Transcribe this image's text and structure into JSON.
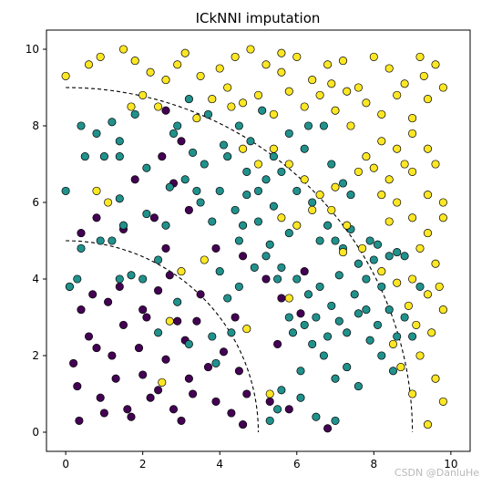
{
  "chart_data": {
    "type": "scatter",
    "title": "ICkNNI imputation",
    "xlabel": "",
    "ylabel": "",
    "xlim": [
      -0.5,
      10.5
    ],
    "ylim": [
      -0.5,
      10.5
    ],
    "x_ticks": [
      0,
      2,
      4,
      6,
      8,
      10
    ],
    "y_ticks": [
      0,
      2,
      4,
      6,
      8,
      10
    ],
    "grid": false,
    "legend": "none",
    "colors": {
      "inner": "#440154",
      "middle": "#21918c",
      "outer": "#fde725"
    },
    "marker_edge": "#000000",
    "boundaries": [
      {
        "shape": "quarter-circle",
        "center": [
          0,
          0
        ],
        "radius": 5,
        "style": "dashed"
      },
      {
        "shape": "quarter-circle",
        "center": [
          0,
          0
        ],
        "radius": 9,
        "style": "dashed"
      }
    ],
    "series": [
      {
        "class": "inner",
        "points": [
          [
            0.35,
            0.3
          ],
          [
            0.2,
            1.8
          ],
          [
            0.4,
            3.2
          ],
          [
            0.1,
            3.8
          ],
          [
            0.8,
            2.2
          ],
          [
            0.9,
            0.9
          ],
          [
            1.3,
            1.4
          ],
          [
            1.7,
            0.4
          ],
          [
            1.9,
            2.2
          ],
          [
            2.1,
            3.0
          ],
          [
            2.4,
            1.1
          ],
          [
            2.8,
            0.6
          ],
          [
            3.1,
            2.4
          ],
          [
            3.3,
            1.0
          ],
          [
            3.5,
            3.6
          ],
          [
            3.9,
            0.8
          ],
          [
            4.1,
            2.1
          ],
          [
            0.6,
            2.5
          ],
          [
            1.1,
            3.4
          ],
          [
            1.5,
            2.8
          ],
          [
            2.6,
            1.9
          ],
          [
            3.0,
            0.3
          ],
          [
            3.7,
            1.7
          ],
          [
            4.3,
            0.5
          ],
          [
            0.3,
            1.2
          ],
          [
            1.0,
            0.5
          ],
          [
            2.0,
            1.5
          ],
          [
            2.9,
            2.9
          ],
          [
            1.6,
            0.6
          ],
          [
            0.7,
            3.6
          ],
          [
            4.5,
            1.6
          ],
          [
            3.4,
            2.9
          ],
          [
            2.2,
            0.9
          ],
          [
            1.2,
            2.0
          ],
          [
            4.7,
            1.0
          ],
          [
            4.6,
            0.2
          ],
          [
            5.3,
            0.8
          ],
          [
            6.8,
            0.1
          ],
          [
            5.6,
            3.5
          ],
          [
            6.1,
            3.1
          ],
          [
            5.5,
            2.3
          ],
          [
            5.2,
            4.0
          ],
          [
            6.2,
            4.2
          ],
          [
            5.8,
            0.6
          ],
          [
            4.6,
            4.6
          ],
          [
            2.6,
            4.8
          ],
          [
            1.4,
            3.8
          ],
          [
            2.0,
            3.2
          ],
          [
            0.4,
            5.2
          ],
          [
            0.8,
            5.6
          ],
          [
            1.8,
            6.6
          ],
          [
            2.8,
            6.5
          ],
          [
            3.0,
            7.6
          ],
          [
            2.6,
            8.4
          ],
          [
            2.5,
            7.2
          ],
          [
            1.5,
            5.3
          ],
          [
            2.3,
            5.6
          ],
          [
            3.2,
            5.8
          ],
          [
            3.9,
            4.8
          ],
          [
            2.7,
            4.1
          ],
          [
            4.4,
            3.0
          ],
          [
            3.2,
            1.4
          ],
          [
            2.4,
            3.7
          ]
        ]
      },
      {
        "class": "middle",
        "points": [
          [
            0.0,
            6.3
          ],
          [
            0.4,
            8.0
          ],
          [
            0.5,
            7.2
          ],
          [
            0.8,
            7.8
          ],
          [
            1.2,
            8.1
          ],
          [
            1.4,
            7.6
          ],
          [
            1.4,
            6.1
          ],
          [
            1.5,
            5.4
          ],
          [
            1.4,
            4.0
          ],
          [
            1.8,
            8.3
          ],
          [
            2.1,
            5.7
          ],
          [
            2.4,
            4.5
          ],
          [
            2.6,
            5.4
          ],
          [
            2.7,
            6.4
          ],
          [
            3.1,
            6.6
          ],
          [
            3.3,
            7.3
          ],
          [
            3.5,
            6.0
          ],
          [
            3.8,
            5.5
          ],
          [
            4.0,
            6.3
          ],
          [
            4.2,
            7.2
          ],
          [
            4.4,
            5.8
          ],
          [
            4.5,
            5.0
          ],
          [
            4.7,
            6.2
          ],
          [
            4.8,
            7.6
          ],
          [
            5.1,
            8.4
          ],
          [
            5.2,
            6.6
          ],
          [
            5.4,
            5.9
          ],
          [
            5.6,
            6.8
          ],
          [
            5.8,
            5.2
          ],
          [
            6.0,
            6.3
          ],
          [
            6.2,
            7.4
          ],
          [
            6.4,
            6.0
          ],
          [
            6.6,
            5.0
          ],
          [
            6.8,
            5.4
          ],
          [
            7.0,
            5.0
          ],
          [
            7.2,
            4.8
          ],
          [
            7.4,
            6.2
          ],
          [
            7.6,
            4.4
          ],
          [
            7.8,
            4.0
          ],
          [
            8.0,
            4.5
          ],
          [
            8.2,
            3.8
          ],
          [
            8.4,
            3.2
          ],
          [
            8.6,
            4.7
          ],
          [
            8.6,
            2.5
          ],
          [
            8.8,
            3.0
          ],
          [
            9.0,
            2.5
          ],
          [
            4.0,
            4.2
          ],
          [
            4.2,
            3.5
          ],
          [
            4.5,
            3.8
          ],
          [
            4.9,
            4.3
          ],
          [
            5.2,
            4.6
          ],
          [
            5.6,
            4.3
          ],
          [
            6.0,
            4.0
          ],
          [
            6.3,
            3.6
          ],
          [
            6.6,
            3.8
          ],
          [
            6.9,
            3.3
          ],
          [
            7.1,
            2.9
          ],
          [
            7.3,
            2.6
          ],
          [
            7.6,
            3.1
          ],
          [
            7.9,
            2.4
          ],
          [
            8.2,
            2.0
          ],
          [
            8.5,
            1.6
          ],
          [
            7.3,
            1.7
          ],
          [
            7.6,
            1.2
          ],
          [
            7.0,
            1.4
          ],
          [
            6.7,
            2.0
          ],
          [
            6.4,
            2.3
          ],
          [
            6.1,
            1.6
          ],
          [
            5.9,
            2.6
          ],
          [
            5.6,
            1.1
          ],
          [
            5.3,
            0.3
          ],
          [
            5.5,
            0.6
          ],
          [
            6.1,
            0.9
          ],
          [
            6.5,
            0.4
          ],
          [
            7.0,
            0.3
          ],
          [
            3.9,
            1.8
          ],
          [
            4.3,
            2.6
          ],
          [
            3.8,
            2.5
          ],
          [
            3.2,
            2.3
          ],
          [
            2.9,
            3.4
          ],
          [
            2.4,
            2.6
          ],
          [
            2.0,
            4.0
          ],
          [
            1.7,
            4.1
          ],
          [
            1.2,
            5.0
          ],
          [
            0.4,
            4.8
          ],
          [
            1.0,
            7.2
          ],
          [
            2.9,
            8.0
          ],
          [
            3.2,
            8.7
          ],
          [
            3.7,
            8.3
          ],
          [
            4.1,
            7.5
          ],
          [
            4.5,
            8.0
          ],
          [
            4.7,
            6.8
          ],
          [
            5.0,
            6.3
          ],
          [
            5.4,
            7.2
          ],
          [
            5.8,
            7.8
          ],
          [
            6.3,
            8.0
          ],
          [
            6.7,
            8.0
          ],
          [
            6.9,
            7.0
          ],
          [
            7.2,
            6.5
          ],
          [
            7.4,
            5.3
          ],
          [
            7.9,
            5.0
          ],
          [
            8.1,
            4.9
          ],
          [
            8.4,
            4.6
          ],
          [
            8.8,
            4.6
          ],
          [
            9.2,
            3.8
          ],
          [
            3.6,
            7.0
          ],
          [
            3.4,
            6.3
          ],
          [
            4.6,
            5.4
          ],
          [
            5.0,
            5.5
          ],
          [
            5.3,
            4.9
          ],
          [
            5.5,
            4.0
          ],
          [
            5.8,
            3.0
          ],
          [
            6.2,
            2.8
          ],
          [
            6.5,
            3.0
          ],
          [
            6.8,
            2.5
          ],
          [
            7.1,
            4.1
          ],
          [
            7.5,
            3.6
          ],
          [
            7.8,
            3.2
          ],
          [
            8.1,
            2.8
          ],
          [
            2.1,
            6.9
          ],
          [
            2.8,
            7.8
          ],
          [
            1.4,
            7.2
          ],
          [
            0.9,
            5.0
          ],
          [
            0.3,
            4.0
          ],
          [
            0.1,
            3.8
          ]
        ]
      },
      {
        "class": "outer",
        "points": [
          [
            0.0,
            9.3
          ],
          [
            0.6,
            9.6
          ],
          [
            0.9,
            9.8
          ],
          [
            1.5,
            10.0
          ],
          [
            1.8,
            9.7
          ],
          [
            2.2,
            9.4
          ],
          [
            2.6,
            9.2
          ],
          [
            2.9,
            9.6
          ],
          [
            3.1,
            9.9
          ],
          [
            3.5,
            9.3
          ],
          [
            4.0,
            9.5
          ],
          [
            4.4,
            9.8
          ],
          [
            4.8,
            10.0
          ],
          [
            5.2,
            9.6
          ],
          [
            5.6,
            9.4
          ],
          [
            6.0,
            9.8
          ],
          [
            6.4,
            9.2
          ],
          [
            6.8,
            9.6
          ],
          [
            7.2,
            9.7
          ],
          [
            7.6,
            9.0
          ],
          [
            8.0,
            9.8
          ],
          [
            8.4,
            9.5
          ],
          [
            8.8,
            9.1
          ],
          [
            9.2,
            9.8
          ],
          [
            9.6,
            9.6
          ],
          [
            9.8,
            9.0
          ],
          [
            9.4,
            8.7
          ],
          [
            9.0,
            8.2
          ],
          [
            8.6,
            8.8
          ],
          [
            8.2,
            8.3
          ],
          [
            7.8,
            8.6
          ],
          [
            7.4,
            8.0
          ],
          [
            7.0,
            8.4
          ],
          [
            6.6,
            8.8
          ],
          [
            6.2,
            8.5
          ],
          [
            5.8,
            8.9
          ],
          [
            5.4,
            8.3
          ],
          [
            5.0,
            8.8
          ],
          [
            4.6,
            8.6
          ],
          [
            4.2,
            9.0
          ],
          [
            3.8,
            8.7
          ],
          [
            3.4,
            8.2
          ],
          [
            2.4,
            8.5
          ],
          [
            2.0,
            8.8
          ],
          [
            1.7,
            8.5
          ],
          [
            0.8,
            6.3
          ],
          [
            1.1,
            6.0
          ],
          [
            9.0,
            7.8
          ],
          [
            9.4,
            7.4
          ],
          [
            8.8,
            7.0
          ],
          [
            8.4,
            6.6
          ],
          [
            8.0,
            6.9
          ],
          [
            8.2,
            6.2
          ],
          [
            8.6,
            6.0
          ],
          [
            9.0,
            5.6
          ],
          [
            9.4,
            5.2
          ],
          [
            9.8,
            5.6
          ],
          [
            9.2,
            4.8
          ],
          [
            9.6,
            4.4
          ],
          [
            9.0,
            4.0
          ],
          [
            9.4,
            3.6
          ],
          [
            9.8,
            3.2
          ],
          [
            9.5,
            2.6
          ],
          [
            9.2,
            2.0
          ],
          [
            9.6,
            1.4
          ],
          [
            9.8,
            0.8
          ],
          [
            9.4,
            0.2
          ],
          [
            9.0,
            1.0
          ],
          [
            8.7,
            1.7
          ],
          [
            8.5,
            2.3
          ],
          [
            8.9,
            3.3
          ],
          [
            8.6,
            3.9
          ],
          [
            8.2,
            4.2
          ],
          [
            7.7,
            4.8
          ],
          [
            7.3,
            5.4
          ],
          [
            6.9,
            5.8
          ],
          [
            6.6,
            6.2
          ],
          [
            6.2,
            6.6
          ],
          [
            5.8,
            7.0
          ],
          [
            5.4,
            7.4
          ],
          [
            5.0,
            7.0
          ],
          [
            4.6,
            7.4
          ],
          [
            6.0,
            5.4
          ],
          [
            6.4,
            5.8
          ],
          [
            7.0,
            6.4
          ],
          [
            7.6,
            6.8
          ],
          [
            7.8,
            7.2
          ],
          [
            8.2,
            7.6
          ],
          [
            8.6,
            7.4
          ],
          [
            9.0,
            6.8
          ],
          [
            9.4,
            6.2
          ],
          [
            9.8,
            6.0
          ],
          [
            9.3,
            9.3
          ],
          [
            7.3,
            8.9
          ],
          [
            6.9,
            9.1
          ],
          [
            5.6,
            9.9
          ],
          [
            4.3,
            8.5
          ],
          [
            3.0,
            4.2
          ],
          [
            2.7,
            2.9
          ],
          [
            2.5,
            1.3
          ],
          [
            4.7,
            2.7
          ],
          [
            5.3,
            1.0
          ],
          [
            5.8,
            3.5
          ],
          [
            3.6,
            4.5
          ],
          [
            5.6,
            5.6
          ],
          [
            7.2,
            4.7
          ],
          [
            9.7,
            3.8
          ],
          [
            8.4,
            5.5
          ],
          [
            9.1,
            2.8
          ],
          [
            9.6,
            7.0
          ]
        ]
      }
    ]
  },
  "watermark": "CSDN @DanluHe"
}
